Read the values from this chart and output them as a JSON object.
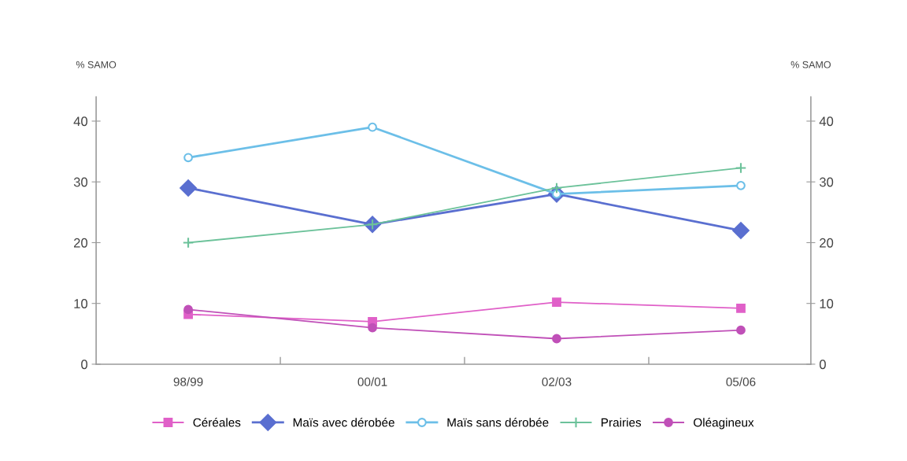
{
  "chart_data": {
    "type": "line",
    "ylabel": "% SAMO",
    "y2label": "% SAMO",
    "categories": [
      "98/99",
      "00/01",
      "02/03",
      "05/06"
    ],
    "series": [
      {
        "name": "Céréales",
        "color": "#e060c8",
        "marker": "square",
        "values": [
          8.2,
          7,
          10.2,
          9.2
        ]
      },
      {
        "name": "Maïs avec dérobée",
        "color": "#5a6fd0",
        "marker": "diamond",
        "values": [
          29,
          23,
          28,
          22
        ]
      },
      {
        "name": "Maïs sans dérobée",
        "color": "#6cbfe8",
        "marker": "circle",
        "values": [
          34,
          39,
          28,
          29.4
        ]
      },
      {
        "name": "Prairies",
        "color": "#6cc29a",
        "marker": "cross",
        "values": [
          20,
          23,
          29,
          32.3
        ]
      },
      {
        "name": "Oléagineux",
        "color": "#c050b8",
        "marker": "circle",
        "values": [
          9,
          6,
          4.2,
          5.6
        ]
      }
    ],
    "ylim": [
      0,
      44
    ],
    "yticks": [
      0,
      10,
      20,
      30,
      40
    ],
    "y2lim": [
      0,
      44
    ],
    "y2ticks": [
      0,
      10,
      20,
      30,
      40
    ],
    "grid": false,
    "legend": "bottom",
    "line_style": "solid"
  }
}
